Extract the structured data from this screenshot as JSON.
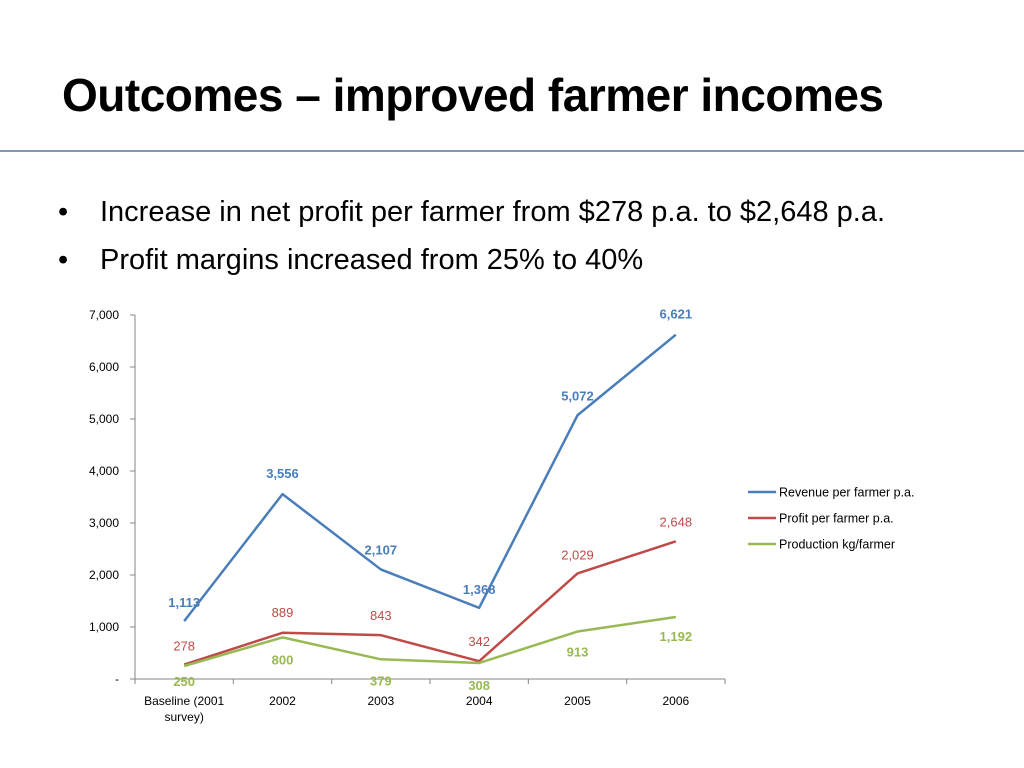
{
  "slide": {
    "title": "Outcomes – improved farmer incomes",
    "bullets": [
      "Increase in net profit per farmer from $278 p.a. to $2,648 p.a.",
      "Profit margins increased from 25% to 40%"
    ],
    "bullet_glyph": "•"
  },
  "chart_data": {
    "type": "line",
    "categories": [
      "Baseline (2001 survey)",
      "2002",
      "2003",
      "2004",
      "2005",
      "2006"
    ],
    "category_label_lines": [
      [
        "Baseline (2001",
        "survey)"
      ],
      [
        "2002"
      ],
      [
        "2003"
      ],
      [
        "2004"
      ],
      [
        "2005"
      ],
      [
        "2006"
      ]
    ],
    "ylim": [
      0,
      7000
    ],
    "yticks": [
      0,
      1000,
      2000,
      3000,
      4000,
      5000,
      6000,
      7000
    ],
    "ytick_labels": [
      "-",
      "1,000",
      "2,000",
      "3,000",
      "4,000",
      "5,000",
      "6,000",
      "7,000"
    ],
    "grid": false,
    "legend": "right",
    "series": [
      {
        "name": "Revenue per farmer p.a.",
        "color": "#4a7ebb",
        "bold_labels": true,
        "values": [
          1113,
          3556,
          2107,
          1368,
          5072,
          6621
        ],
        "labels": [
          "1,113",
          "3,556",
          "2,107",
          "1,368",
          "5,072",
          "6,621"
        ]
      },
      {
        "name": "Profit per farmer p.a.",
        "color": "#be4b48",
        "bold_labels": false,
        "values": [
          278,
          889,
          843,
          342,
          2029,
          2648
        ],
        "labels": [
          "278",
          "889",
          "843",
          "342",
          "2,029",
          "2,648"
        ]
      },
      {
        "name": "Production kg/farmer",
        "color": "#98b954",
        "bold_labels": true,
        "values": [
          250,
          800,
          379,
          308,
          913,
          1192
        ],
        "labels": [
          "250",
          "800",
          "379",
          "308",
          "913",
          "1,192"
        ]
      }
    ]
  }
}
